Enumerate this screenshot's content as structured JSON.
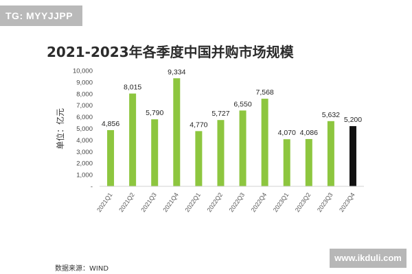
{
  "header": {
    "badge_text": "TG: MYYJJPP"
  },
  "chart_data": {
    "type": "bar",
    "title": "2021-2023年各季度中国并购市场规模",
    "ylabel": "单位：亿元",
    "xlabel": "",
    "ylim": [
      0,
      10000
    ],
    "yticks": [
      0,
      1000,
      2000,
      3000,
      4000,
      5000,
      6000,
      7000,
      8000,
      9000,
      10000
    ],
    "ytick_labels": [
      "-",
      "1,000",
      "2,000",
      "3,000",
      "4,000",
      "5,000",
      "6,000",
      "7,000",
      "8,000",
      "9,000",
      "10,000"
    ],
    "categories": [
      "2021Q1",
      "2021Q2",
      "2021Q3",
      "2021Q4",
      "2022Q1",
      "2022Q2",
      "2022Q3",
      "2022Q4",
      "2023Q1",
      "2023Q2",
      "2023Q3",
      "2023Q4"
    ],
    "values": [
      4856,
      8015,
      5790,
      9334,
      4770,
      5727,
      6550,
      7568,
      4070,
      4086,
      5632,
      5200
    ],
    "value_labels": [
      "4,856",
      "8,015",
      "5,790",
      "9,334",
      "4,770",
      "5,727",
      "6,550",
      "7,568",
      "4,070",
      "4,086",
      "5,632",
      "5,200"
    ],
    "bar_colors": [
      "#8dc63f",
      "#8dc63f",
      "#8dc63f",
      "#8dc63f",
      "#8dc63f",
      "#8dc63f",
      "#8dc63f",
      "#8dc63f",
      "#8dc63f",
      "#8dc63f",
      "#8dc63f",
      "#111111"
    ],
    "grid": false
  },
  "footer": {
    "source": "数据来源：WIND",
    "watermark": "www.ikduli.com"
  }
}
